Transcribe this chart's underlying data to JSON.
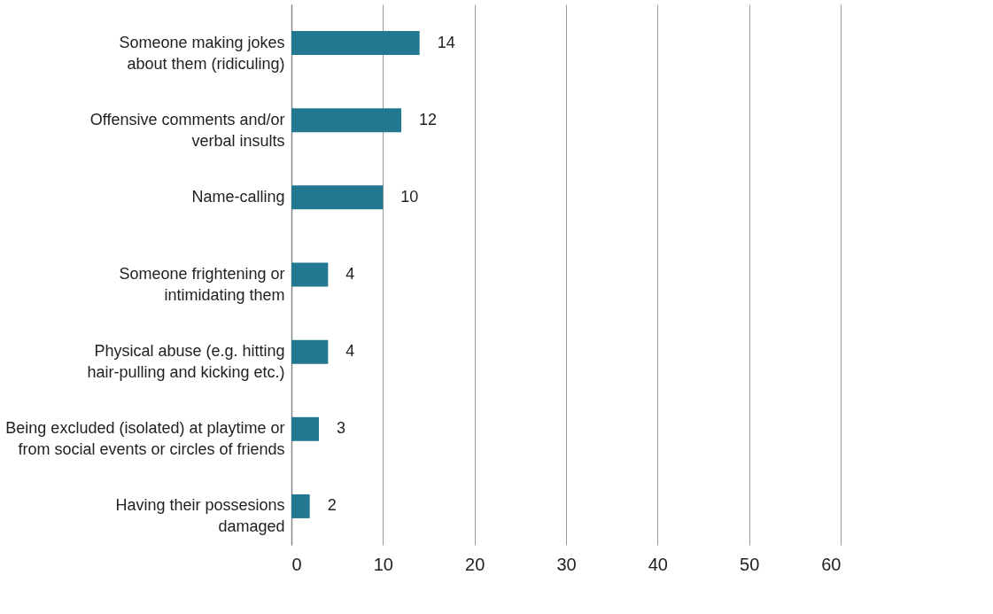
{
  "chart_data": {
    "type": "bar",
    "orientation": "horizontal",
    "categories": [
      "Someone making jokes\nabout them (ridiculing)",
      "Offensive comments and/or\nverbal insults",
      "Name-calling",
      "Someone frightening or\nintimidating them",
      "Physical abuse (e.g. hitting\nhair-pulling and kicking etc.)",
      "Being excluded (isolated) at playtime or\nfrom social events or circles of friends",
      "Having their possesions\ndamaged"
    ],
    "values": [
      14,
      12,
      10,
      4,
      4,
      3,
      2
    ],
    "color": "#237891",
    "xlim": [
      0,
      60
    ],
    "xticks": [
      0,
      10,
      20,
      30,
      40,
      50,
      60
    ],
    "grid": "x",
    "data_labels": true
  }
}
